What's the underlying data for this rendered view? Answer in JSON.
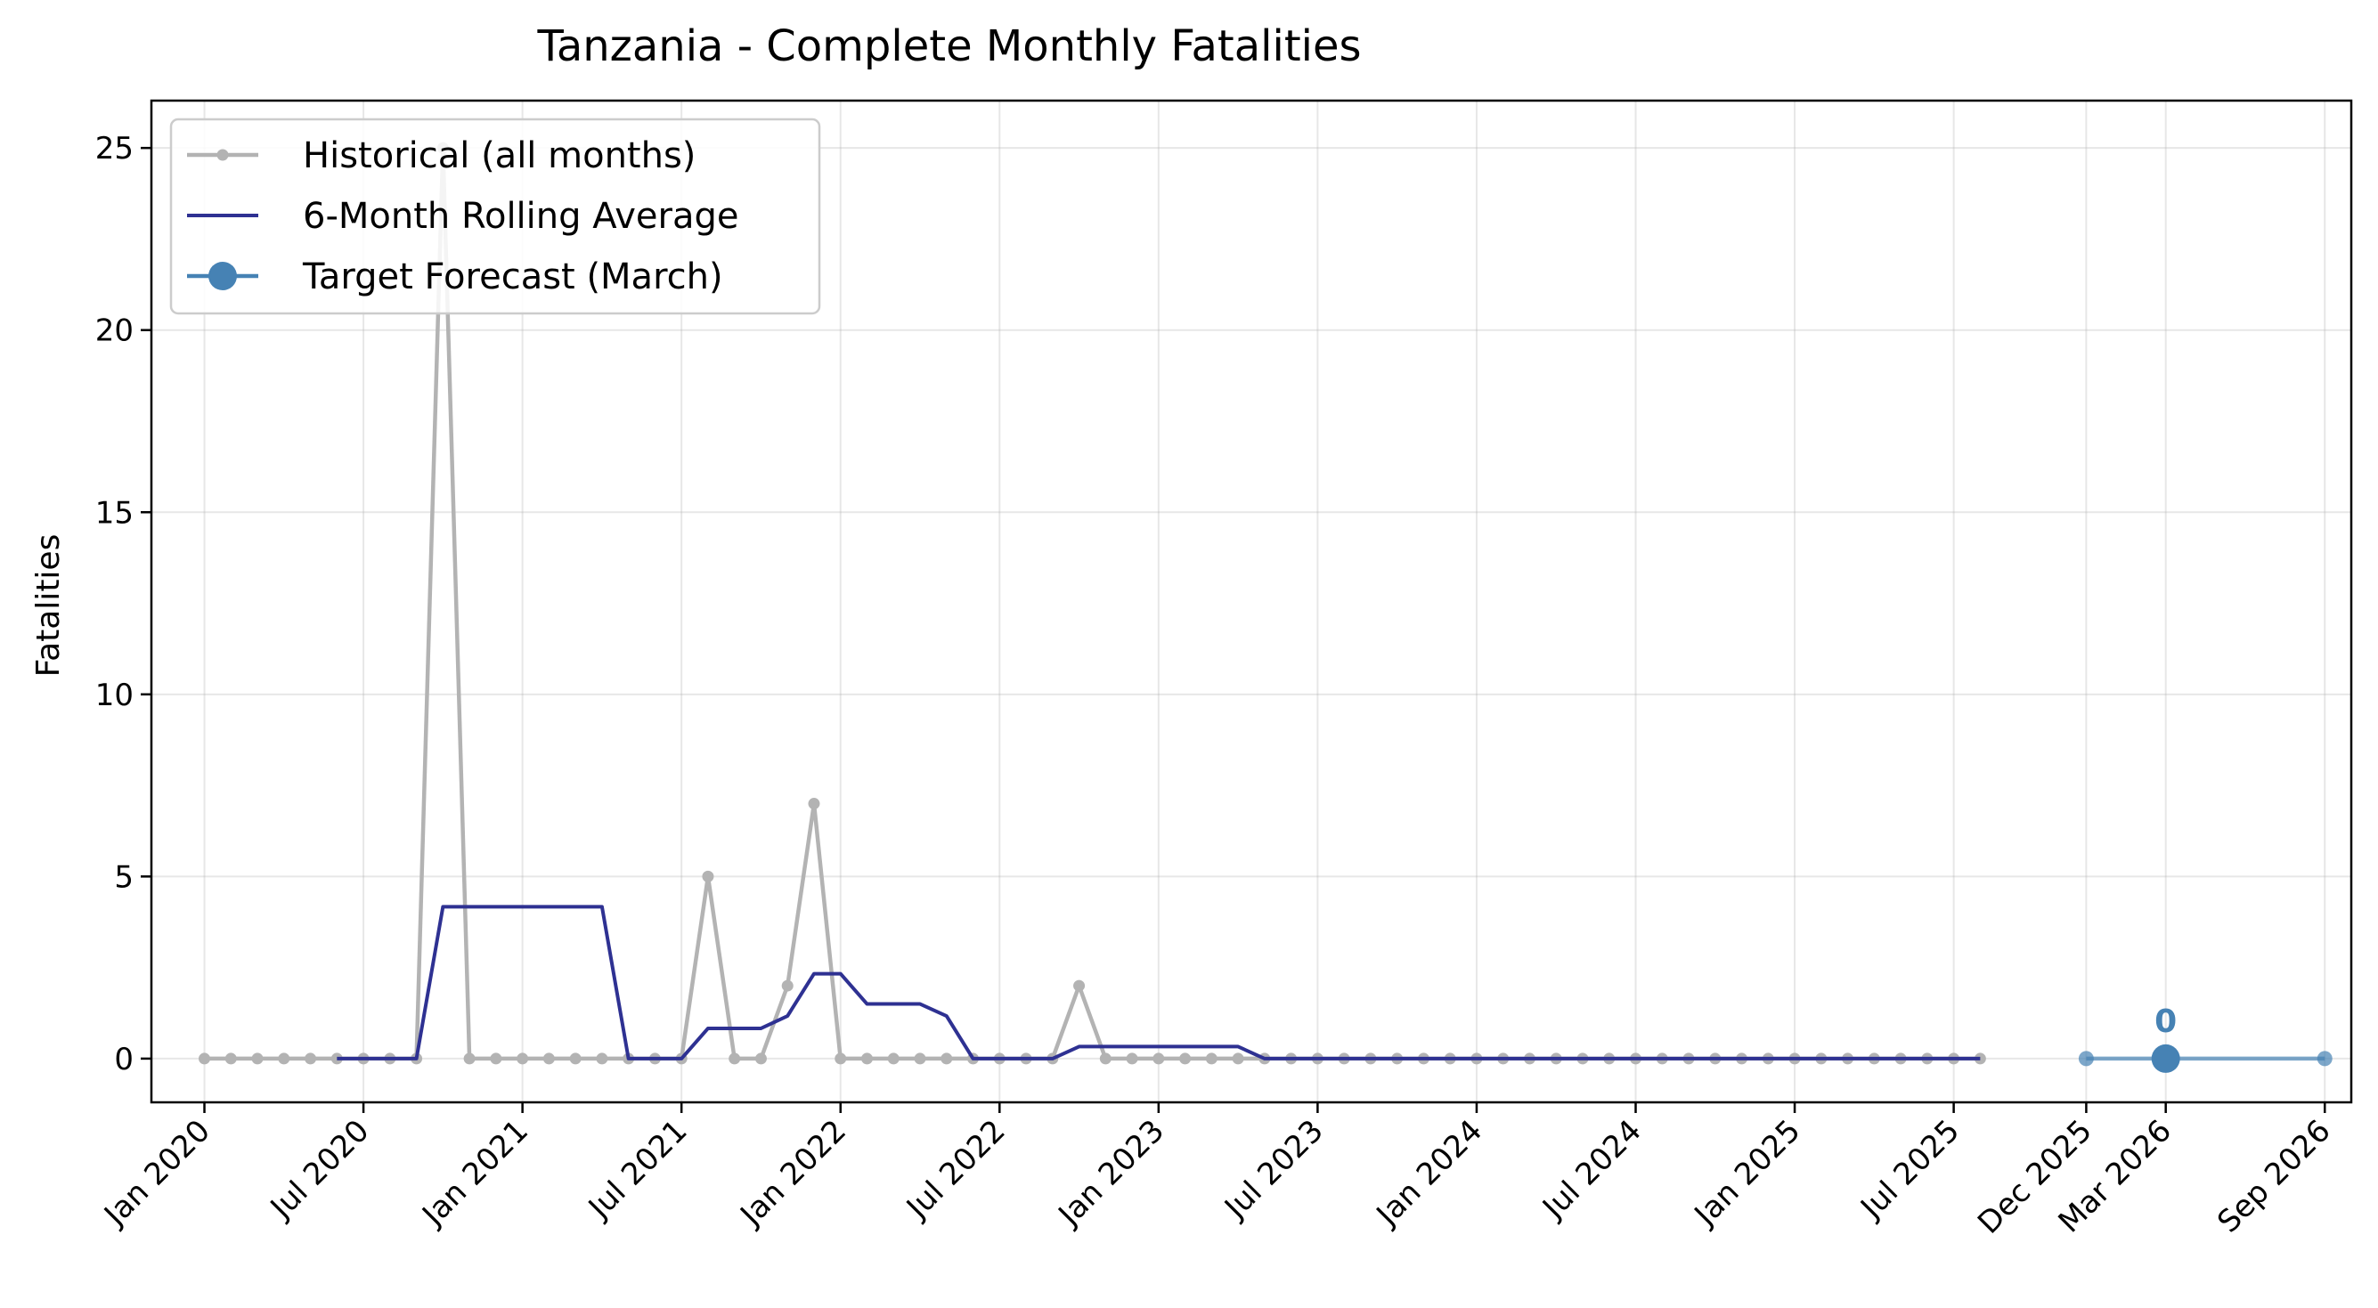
{
  "chart_data": {
    "type": "line",
    "title": "Tanzania - Complete Monthly Fatalities",
    "xlabel": "",
    "ylabel": "Fatalities",
    "x_axis_type": "date-months",
    "xlim": [
      "2019-11",
      "2026-10"
    ],
    "ylim": [
      -1.2,
      26.3
    ],
    "y_ticks": [
      0,
      5,
      10,
      15,
      20,
      25
    ],
    "x_ticks": [
      {
        "date": "2020-01",
        "label": "Jan 2020"
      },
      {
        "date": "2020-07",
        "label": "Jul 2020"
      },
      {
        "date": "2021-01",
        "label": "Jan 2021"
      },
      {
        "date": "2021-07",
        "label": "Jul 2021"
      },
      {
        "date": "2022-01",
        "label": "Jan 2022"
      },
      {
        "date": "2022-07",
        "label": "Jul 2022"
      },
      {
        "date": "2023-01",
        "label": "Jan 2023"
      },
      {
        "date": "2023-07",
        "label": "Jul 2023"
      },
      {
        "date": "2024-01",
        "label": "Jan 2024"
      },
      {
        "date": "2024-07",
        "label": "Jul 2024"
      },
      {
        "date": "2025-01",
        "label": "Jan 2025"
      },
      {
        "date": "2025-07",
        "label": "Jul 2025"
      },
      {
        "date": "2025-12",
        "label": "Dec 2025"
      },
      {
        "date": "2026-03",
        "label": "Mar 2026"
      },
      {
        "date": "2026-09",
        "label": "Sep 2026"
      }
    ],
    "grid": true,
    "legend_position": "top-left",
    "series": [
      {
        "name": "Historical (all months)",
        "color": "#b3b3b3",
        "marker": "small-dot",
        "x": [
          "2020-01",
          "2020-02",
          "2020-03",
          "2020-04",
          "2020-05",
          "2020-06",
          "2020-07",
          "2020-08",
          "2020-09",
          "2020-10",
          "2020-11",
          "2020-12",
          "2021-01",
          "2021-02",
          "2021-03",
          "2021-04",
          "2021-05",
          "2021-06",
          "2021-07",
          "2021-08",
          "2021-09",
          "2021-10",
          "2021-11",
          "2021-12",
          "2022-01",
          "2022-02",
          "2022-03",
          "2022-04",
          "2022-05",
          "2022-06",
          "2022-07",
          "2022-08",
          "2022-09",
          "2022-10",
          "2022-11",
          "2022-12",
          "2023-01",
          "2023-02",
          "2023-03",
          "2023-04",
          "2023-05",
          "2023-06",
          "2023-07",
          "2023-08",
          "2023-09",
          "2023-10",
          "2023-11",
          "2023-12",
          "2024-01",
          "2024-02",
          "2024-03",
          "2024-04",
          "2024-05",
          "2024-06",
          "2024-07",
          "2024-08",
          "2024-09",
          "2024-10",
          "2024-11",
          "2024-12",
          "2025-01",
          "2025-02",
          "2025-03",
          "2025-04",
          "2025-05",
          "2025-06",
          "2025-07",
          "2025-08"
        ],
        "y": [
          0,
          0,
          0,
          0,
          0,
          0,
          0,
          0,
          0,
          25,
          0,
          0,
          0,
          0,
          0,
          0,
          0,
          0,
          0,
          5,
          0,
          0,
          2,
          7,
          0,
          0,
          0,
          0,
          0,
          0,
          0,
          0,
          0,
          2,
          0,
          0,
          0,
          0,
          0,
          0,
          0,
          0,
          0,
          0,
          0,
          0,
          0,
          0,
          0,
          0,
          0,
          0,
          0,
          0,
          0,
          0,
          0,
          0,
          0,
          0,
          0,
          0,
          0,
          0,
          0,
          0,
          0,
          0
        ]
      },
      {
        "name": "6-Month Rolling Average",
        "color": "#2e3192",
        "marker": "none",
        "x": [
          "2020-06",
          "2020-07",
          "2020-08",
          "2020-09",
          "2020-10",
          "2020-11",
          "2020-12",
          "2021-01",
          "2021-02",
          "2021-03",
          "2021-04",
          "2021-05",
          "2021-06",
          "2021-07",
          "2021-08",
          "2021-09",
          "2021-10",
          "2021-11",
          "2021-12",
          "2022-01",
          "2022-02",
          "2022-03",
          "2022-04",
          "2022-05",
          "2022-06",
          "2022-07",
          "2022-08",
          "2022-09",
          "2022-10",
          "2022-11",
          "2022-12",
          "2023-01",
          "2023-02",
          "2023-03",
          "2023-04",
          "2023-05",
          "2023-06",
          "2023-07",
          "2023-08",
          "2023-09",
          "2023-10",
          "2023-11",
          "2023-12",
          "2024-01",
          "2024-02",
          "2024-03",
          "2024-04",
          "2024-05",
          "2024-06",
          "2024-07",
          "2024-08",
          "2024-09",
          "2024-10",
          "2024-11",
          "2024-12",
          "2025-01",
          "2025-02",
          "2025-03",
          "2025-04",
          "2025-05",
          "2025-06",
          "2025-07",
          "2025-08"
        ],
        "y": [
          0,
          0,
          0,
          0,
          4.17,
          4.17,
          4.17,
          4.17,
          4.17,
          4.17,
          4.17,
          0,
          0,
          0,
          0.83,
          0.83,
          0.83,
          1.17,
          2.33,
          2.33,
          1.5,
          1.5,
          1.5,
          1.17,
          0,
          0,
          0,
          0,
          0.33,
          0.33,
          0.33,
          0.33,
          0.33,
          0.33,
          0.33,
          0,
          0,
          0,
          0,
          0,
          0,
          0,
          0,
          0,
          0,
          0,
          0,
          0,
          0,
          0,
          0,
          0,
          0,
          0,
          0,
          0,
          0,
          0,
          0,
          0,
          0,
          0,
          0
        ]
      },
      {
        "name": "Target Forecast (March)",
        "color": "#4682b4",
        "marker": "big-dot-at-target",
        "x": [
          "2025-12",
          "2026-03",
          "2026-09"
        ],
        "y": [
          0,
          0,
          0
        ],
        "target_x": "2026-03",
        "target_label": "0"
      }
    ]
  }
}
